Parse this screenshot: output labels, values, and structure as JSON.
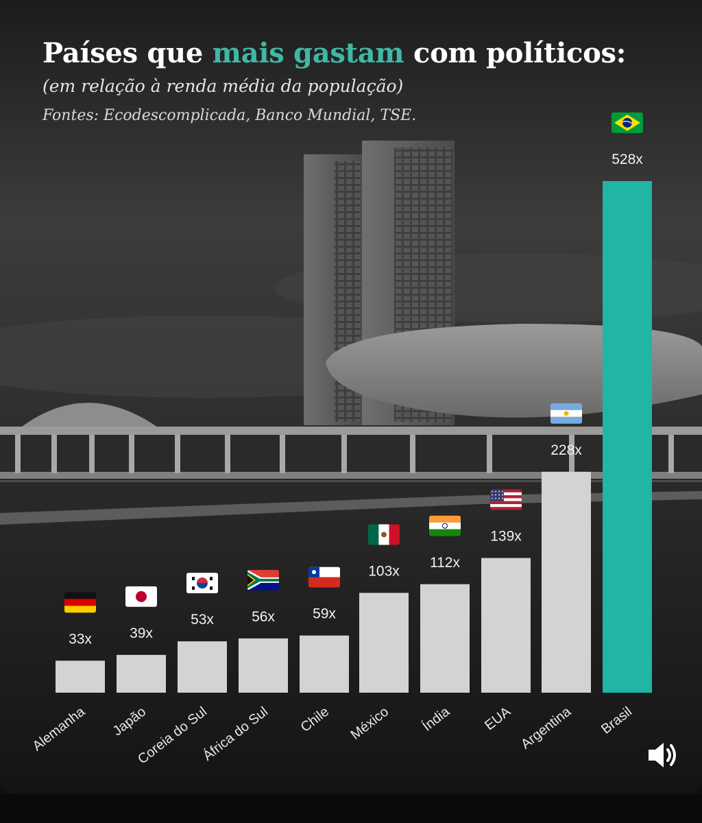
{
  "header": {
    "title_part1": "Países que ",
    "title_highlight": "mais gastam",
    "title_part2": " com políticos:",
    "subtitle": "(em relação à renda média da população)",
    "sources": "Fontes: Ecodescomplicada, Banco Mundial, TSE."
  },
  "colors": {
    "highlight": "#3fb8a6",
    "bar_default": "#d3d3d3",
    "bar_highlight": "#21b5a3",
    "value_text": "#f2f2f2"
  },
  "chart_data": {
    "type": "bar",
    "title": "Países que mais gastam com políticos:",
    "subtitle": "(em relação à renda média da população)",
    "categories": [
      "Alemanha",
      "Japão",
      "Coreia do Sul",
      "África do Sul",
      "Chile",
      "México",
      "Índia",
      "EUA",
      "Argentina",
      "Brasil"
    ],
    "values": [
      33,
      39,
      53,
      56,
      59,
      103,
      112,
      139,
      228,
      528
    ],
    "value_labels": [
      "33x",
      "39x",
      "53x",
      "56x",
      "59x",
      "103x",
      "112x",
      "139x",
      "228x",
      "528x"
    ],
    "flags": [
      "germany-flag",
      "japan-flag",
      "south-korea-flag",
      "south-africa-flag",
      "chile-flag",
      "mexico-flag",
      "india-flag",
      "usa-flag",
      "argentina-flag",
      "brazil-flag"
    ],
    "highlight_category": "Brasil",
    "ylim": [
      0,
      528
    ],
    "grid": false,
    "xlabel": "",
    "ylabel": ""
  },
  "controls": {
    "sound_icon": "speaker-icon"
  }
}
